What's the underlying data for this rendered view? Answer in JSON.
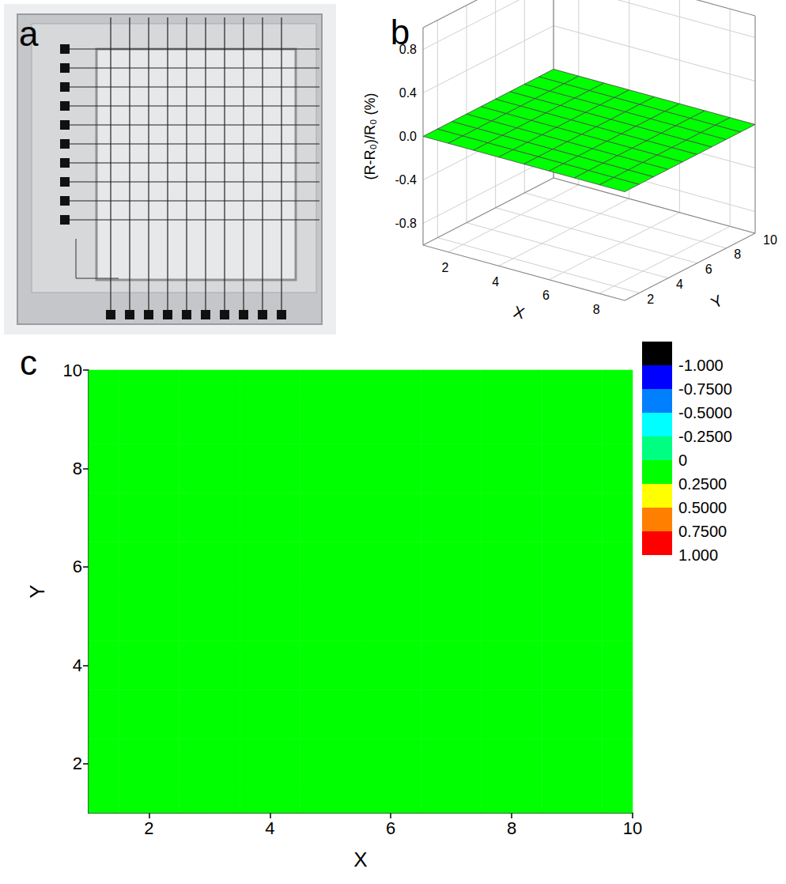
{
  "photo": {
    "panel": "a"
  },
  "chart_data": [
    {
      "panel": "b",
      "type": "surface",
      "x_label": "X",
      "y_label": "Y",
      "z_label": "(R-R₀)/R₀ (%)",
      "x": [
        1,
        2,
        3,
        4,
        5,
        6,
        7,
        8,
        9
      ],
      "y": [
        1,
        2,
        3,
        4,
        5,
        6,
        7,
        8,
        9,
        10
      ],
      "values": [
        [
          0,
          0,
          0,
          0,
          0,
          0,
          0,
          0,
          0
        ],
        [
          0,
          0,
          0,
          0,
          0,
          0,
          0,
          0,
          0
        ],
        [
          0,
          0,
          0,
          0,
          0,
          0,
          0,
          0,
          0
        ],
        [
          0,
          0,
          0,
          0,
          0,
          0,
          0,
          0,
          0
        ],
        [
          0,
          0,
          0,
          0,
          0,
          0,
          0,
          0,
          0
        ],
        [
          0,
          0,
          0,
          0,
          0,
          0,
          0,
          0,
          0
        ],
        [
          0,
          0,
          0,
          0,
          0,
          0,
          0,
          0,
          0
        ],
        [
          0,
          0,
          0,
          0,
          0,
          0,
          0,
          0,
          0
        ],
        [
          0,
          0,
          0,
          0,
          0,
          0,
          0,
          0,
          0
        ],
        [
          0,
          0,
          0,
          0,
          0,
          0,
          0,
          0,
          0
        ]
      ],
      "color": "#00ff00",
      "xlim": [
        1,
        9
      ],
      "ylim": [
        1,
        10
      ],
      "zlim": [
        -1,
        1
      ],
      "xticks": [
        2,
        4,
        6,
        8
      ],
      "yticks": [
        2,
        4,
        6,
        8,
        10
      ],
      "zticks": [
        -0.8,
        -0.4,
        {
          "value": 0,
          "label": "0.0"
        },
        0.4,
        0.8
      ],
      "grid": true
    },
    {
      "panel": "c",
      "type": "heatmap",
      "x_label": "X",
      "y_label": "Y",
      "x": [
        1,
        2,
        3,
        4,
        5,
        6,
        7,
        8,
        9,
        10
      ],
      "y": [
        1,
        2,
        3,
        4,
        5,
        6,
        7,
        8,
        9,
        10
      ],
      "cells": [
        [
          0,
          0,
          0,
          0,
          0,
          0,
          0,
          0,
          0,
          0
        ],
        [
          0,
          0,
          0,
          0,
          0,
          0,
          0,
          0,
          0,
          0
        ],
        [
          0,
          0,
          0,
          0,
          0,
          0,
          0,
          0,
          0,
          0
        ],
        [
          0,
          0,
          0,
          0,
          0,
          0,
          0,
          0,
          0,
          0
        ],
        [
          0,
          0,
          0,
          0,
          0,
          0,
          0,
          0,
          0,
          0
        ],
        [
          0,
          0,
          0,
          0,
          0,
          0,
          0,
          0,
          0,
          0
        ],
        [
          0,
          0,
          0,
          0,
          0,
          0,
          0,
          0,
          0,
          0
        ],
        [
          0,
          0,
          0,
          0,
          0,
          0,
          0,
          0,
          0,
          0
        ],
        [
          0,
          0,
          0,
          0,
          0,
          0,
          0,
          0,
          0,
          0
        ],
        [
          0,
          0,
          0,
          0,
          0,
          0,
          0,
          0,
          0,
          0
        ]
      ],
      "xlim": [
        1,
        10
      ],
      "ylim": [
        1,
        10
      ],
      "xticks": [
        2,
        4,
        6,
        8,
        10
      ],
      "yticks": [
        2,
        4,
        6,
        8,
        10
      ],
      "colorbar": {
        "levels": [
          {
            "value": -1,
            "label": "-1.000"
          },
          {
            "value": -0.75,
            "label": "-0.7500"
          },
          {
            "value": -0.5,
            "label": "-0.5000"
          },
          {
            "value": -0.25,
            "label": "-0.2500"
          },
          0,
          {
            "value": 0.25,
            "label": "0.2500"
          },
          {
            "value": 0.5,
            "label": "0.5000"
          },
          {
            "value": 0.75,
            "label": "0.7500"
          },
          {
            "value": 1,
            "label": "1.000"
          }
        ],
        "colors": [
          "#000000",
          "#0000ff",
          "#0080ff",
          "#00ffff",
          "#00ff80",
          "#00ff00",
          "#ffff00",
          "#ff8000",
          "#ff0000"
        ]
      }
    }
  ]
}
